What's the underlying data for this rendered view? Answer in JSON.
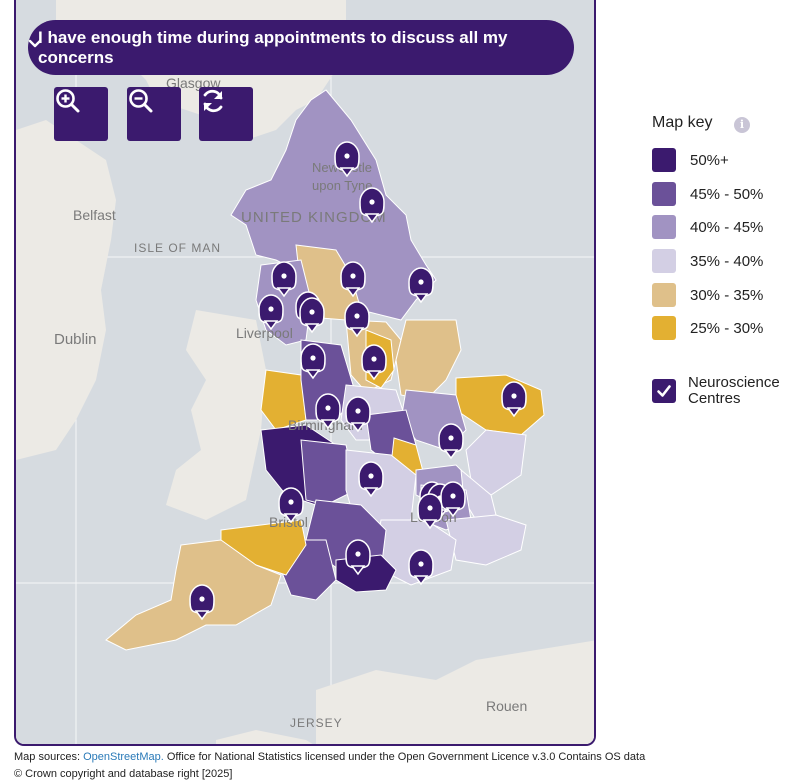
{
  "question": {
    "selected": "I have enough time during appointments to discuss all my concerns",
    "icon": "chevron-down-icon"
  },
  "controls": {
    "zoom_in": "zoom-in-icon",
    "zoom_out": "zoom-out-icon",
    "reset": "refresh-icon"
  },
  "map_labels": {
    "glasgow": "Glasgow",
    "newcastle_1": "Newcastle",
    "newcastle_2": "upon Tyne",
    "uk": "UNITED KINGDOM",
    "belfast": "Belfast",
    "isle_of_man": "ISLE OF MAN",
    "dublin": "Dublin",
    "liverpool": "Liverpool",
    "birmingham": "Birmingham",
    "bristol": "Bristol",
    "london": "London",
    "jersey": "JERSEY",
    "rouen": "Rouen"
  },
  "legend": {
    "title": "Map key",
    "info_icon": "i",
    "items": [
      {
        "label": "50%+",
        "color": "#3b1a6e"
      },
      {
        "label": "45% - 50%",
        "color": "#6b5199"
      },
      {
        "label": "40% - 45%",
        "color": "#a193c2"
      },
      {
        "label": "35% - 40%",
        "color": "#d3cfe4"
      },
      {
        "label": "30% - 35%",
        "color": "#dfc08a"
      },
      {
        "label": "25% - 30%",
        "color": "#e3b032"
      }
    ],
    "neuroscience": {
      "label": "Neuroscience Centres",
      "checked": true
    }
  },
  "footer": {
    "prefix": "Map sources: ",
    "osm_link": "OpenStreetMap.",
    "line1_rest": " Office for National Statistics licensed under the Open Government Licence v.3.0 Contains OS data",
    "line2": "© Crown copyright and database right [2025]"
  }
}
